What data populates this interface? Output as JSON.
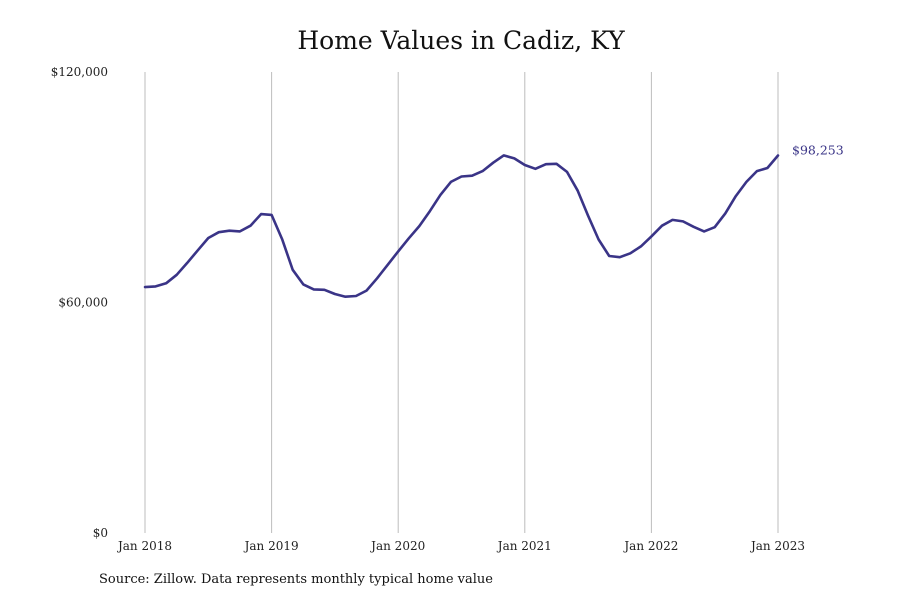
{
  "chart_data": {
    "type": "line",
    "title": "Home Values in Cadiz, KY",
    "source": "Source: Zillow. Data represents monthly typical home value",
    "xlabel": "",
    "ylabel": "",
    "x_tick_labels": [
      "Jan 2018",
      "Jan 2019",
      "Jan 2020",
      "Jan 2021",
      "Jan 2022",
      "Jan 2023"
    ],
    "y_tick_labels": [
      "$0",
      "$60,000",
      "$120,000"
    ],
    "y_ticks": [
      0,
      60000,
      120000
    ],
    "ylim": [
      0,
      120000
    ],
    "x_range_months": [
      0,
      60
    ],
    "grid": "vertical",
    "end_label": "$98,253",
    "line_color": "#3a3487",
    "series": [
      {
        "name": "Typical home value",
        "x_months": [
          0,
          1,
          2,
          3,
          4,
          5,
          6,
          7,
          8,
          9,
          10,
          11,
          12,
          13,
          14,
          15,
          16,
          17,
          18,
          19,
          20,
          21,
          22,
          23,
          24,
          25,
          26,
          27,
          28,
          29,
          30,
          31,
          32,
          33,
          34,
          35,
          36,
          37,
          38,
          39,
          40,
          41,
          42,
          43,
          44,
          45,
          46,
          47,
          48,
          49,
          50,
          51,
          52,
          53,
          54,
          55,
          56,
          57,
          58,
          59,
          60
        ],
        "values": [
          64000,
          64200,
          65000,
          67200,
          70300,
          73600,
          76800,
          78300,
          78700,
          78500,
          80000,
          83000,
          82800,
          76500,
          68500,
          64700,
          63400,
          63300,
          62200,
          61500,
          61700,
          63100,
          66300,
          69800,
          73300,
          76700,
          79900,
          83800,
          88000,
          91400,
          92800,
          93000,
          94200,
          96400,
          98300,
          97500,
          95800,
          94800,
          96000,
          96100,
          94000,
          89200,
          82600,
          76400,
          72100,
          71800,
          72800,
          74600,
          77200,
          80000,
          81500,
          81100,
          79700,
          78500,
          79600,
          83200,
          87700,
          91400,
          94200,
          95000,
          98253
        ]
      }
    ]
  }
}
